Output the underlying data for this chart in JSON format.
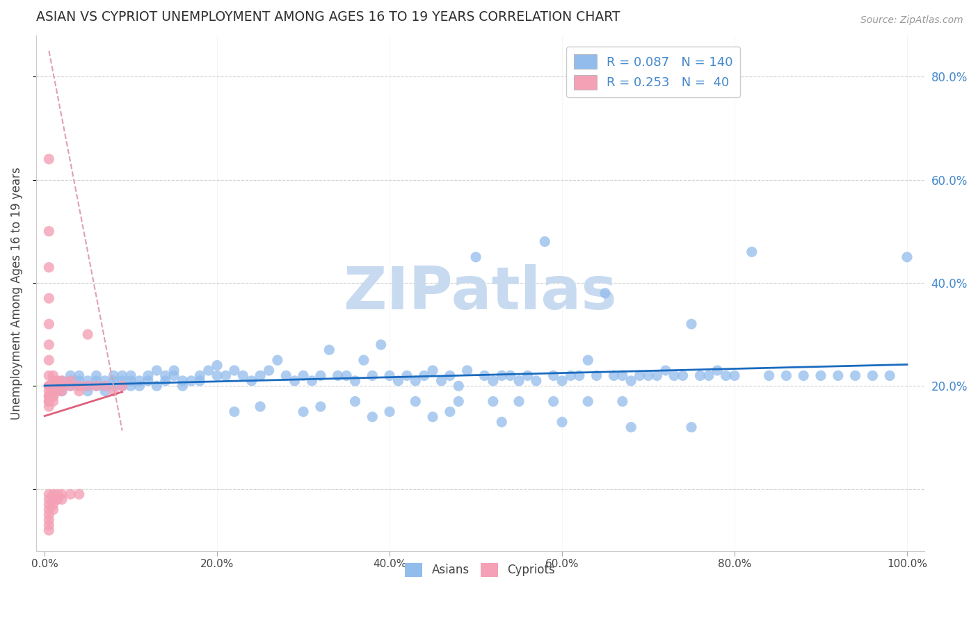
{
  "title": "ASIAN VS CYPRIOT UNEMPLOYMENT AMONG AGES 16 TO 19 YEARS CORRELATION CHART",
  "source": "Source: ZipAtlas.com",
  "ylabel": "Unemployment Among Ages 16 to 19 years",
  "xlim": [
    -0.01,
    1.02
  ],
  "ylim": [
    -0.12,
    0.88
  ],
  "ytick_positions": [
    0.0,
    0.2,
    0.4,
    0.6,
    0.8
  ],
  "ytick_labels_right": [
    "20.0%",
    "40.0%",
    "60.0%",
    "80.0%"
  ],
  "ytick_positions_right": [
    0.2,
    0.4,
    0.6,
    0.8
  ],
  "xtick_positions": [
    0.0,
    0.2,
    0.4,
    0.6,
    0.8,
    1.0
  ],
  "xtick_labels": [
    "0.0%",
    "20.0%",
    "40.0%",
    "60.0%",
    "80.0%",
    "100.0%"
  ],
  "asian_color": "#92bcec",
  "cypriot_color": "#f4a0b5",
  "asian_trend_color": "#1a6bbf",
  "cypriot_trend_color": "#e0607a",
  "cypriot_dash_color": "#e0a0b0",
  "legend_R_asian": "0.087",
  "legend_N_asian": "140",
  "legend_R_cypriot": "0.253",
  "legend_N_cypriot": "40",
  "title_color": "#303030",
  "watermark": "ZIPatlas",
  "watermark_color": "#c8daf0",
  "grid_color": "#d0d0d0",
  "asian_x": [
    0.01,
    0.01,
    0.02,
    0.02,
    0.02,
    0.03,
    0.03,
    0.03,
    0.04,
    0.04,
    0.04,
    0.05,
    0.05,
    0.05,
    0.06,
    0.06,
    0.06,
    0.07,
    0.07,
    0.07,
    0.08,
    0.08,
    0.08,
    0.09,
    0.09,
    0.09,
    0.1,
    0.1,
    0.1,
    0.11,
    0.11,
    0.12,
    0.12,
    0.13,
    0.13,
    0.14,
    0.14,
    0.15,
    0.15,
    0.16,
    0.16,
    0.17,
    0.18,
    0.18,
    0.19,
    0.2,
    0.2,
    0.21,
    0.22,
    0.23,
    0.24,
    0.25,
    0.26,
    0.27,
    0.28,
    0.29,
    0.3,
    0.31,
    0.32,
    0.33,
    0.34,
    0.35,
    0.36,
    0.37,
    0.38,
    0.39,
    0.4,
    0.41,
    0.42,
    0.43,
    0.44,
    0.45,
    0.46,
    0.47,
    0.48,
    0.49,
    0.5,
    0.51,
    0.52,
    0.53,
    0.54,
    0.55,
    0.56,
    0.57,
    0.58,
    0.59,
    0.6,
    0.61,
    0.62,
    0.63,
    0.64,
    0.65,
    0.66,
    0.67,
    0.68,
    0.69,
    0.7,
    0.71,
    0.72,
    0.73,
    0.74,
    0.75,
    0.76,
    0.77,
    0.78,
    0.79,
    0.8,
    0.82,
    0.84,
    0.86,
    0.88,
    0.9,
    0.92,
    0.94,
    0.96,
    0.98,
    1.0,
    0.36,
    0.43,
    0.48,
    0.52,
    0.55,
    0.59,
    0.63,
    0.67,
    0.22,
    0.3,
    0.38,
    0.45,
    0.53,
    0.6,
    0.68,
    0.75,
    0.25,
    0.32,
    0.4,
    0.47
  ],
  "asian_y": [
    0.2,
    0.19,
    0.21,
    0.2,
    0.19,
    0.22,
    0.21,
    0.2,
    0.22,
    0.21,
    0.2,
    0.19,
    0.2,
    0.21,
    0.2,
    0.21,
    0.22,
    0.19,
    0.2,
    0.21,
    0.22,
    0.21,
    0.2,
    0.22,
    0.21,
    0.2,
    0.21,
    0.2,
    0.22,
    0.21,
    0.2,
    0.22,
    0.21,
    0.23,
    0.2,
    0.22,
    0.21,
    0.22,
    0.23,
    0.21,
    0.2,
    0.21,
    0.22,
    0.21,
    0.23,
    0.22,
    0.24,
    0.22,
    0.23,
    0.22,
    0.21,
    0.22,
    0.23,
    0.25,
    0.22,
    0.21,
    0.22,
    0.21,
    0.22,
    0.27,
    0.22,
    0.22,
    0.21,
    0.25,
    0.22,
    0.28,
    0.22,
    0.21,
    0.22,
    0.21,
    0.22,
    0.23,
    0.21,
    0.22,
    0.2,
    0.23,
    0.45,
    0.22,
    0.21,
    0.22,
    0.22,
    0.21,
    0.22,
    0.21,
    0.48,
    0.22,
    0.21,
    0.22,
    0.22,
    0.25,
    0.22,
    0.38,
    0.22,
    0.22,
    0.21,
    0.22,
    0.22,
    0.22,
    0.23,
    0.22,
    0.22,
    0.32,
    0.22,
    0.22,
    0.23,
    0.22,
    0.22,
    0.46,
    0.22,
    0.22,
    0.22,
    0.22,
    0.22,
    0.22,
    0.22,
    0.22,
    0.45,
    0.17,
    0.17,
    0.17,
    0.17,
    0.17,
    0.17,
    0.17,
    0.17,
    0.15,
    0.15,
    0.14,
    0.14,
    0.13,
    0.13,
    0.12,
    0.12,
    0.16,
    0.16,
    0.15,
    0.15
  ],
  "cypriot_x": [
    0.005,
    0.005,
    0.005,
    0.005,
    0.005,
    0.005,
    0.005,
    0.005,
    0.005,
    0.005,
    0.005,
    0.005,
    0.005,
    0.005,
    0.005,
    0.005,
    0.01,
    0.01,
    0.01,
    0.01,
    0.01,
    0.01,
    0.01,
    0.01,
    0.015,
    0.015,
    0.015,
    0.02,
    0.02,
    0.02,
    0.03,
    0.03,
    0.04,
    0.04,
    0.05,
    0.05,
    0.06,
    0.07,
    0.08,
    0.09
  ],
  "cypriot_y": [
    0.64,
    0.5,
    0.43,
    0.37,
    0.32,
    0.28,
    0.25,
    0.22,
    0.2,
    0.2,
    0.19,
    0.18,
    0.18,
    0.17,
    0.17,
    0.16,
    0.22,
    0.21,
    0.2,
    0.19,
    0.19,
    0.18,
    0.18,
    0.17,
    0.21,
    0.2,
    0.19,
    0.21,
    0.2,
    0.19,
    0.21,
    0.2,
    0.2,
    0.19,
    0.3,
    0.2,
    0.2,
    0.2,
    0.19,
    0.2
  ],
  "cypriot_below_x": [
    0.005,
    0.005,
    0.005,
    0.005,
    0.005,
    0.005,
    0.005,
    0.005,
    0.01,
    0.01,
    0.01,
    0.01,
    0.015,
    0.015,
    0.02,
    0.02,
    0.03,
    0.04
  ],
  "cypriot_below_y": [
    -0.01,
    -0.02,
    -0.03,
    -0.04,
    -0.05,
    -0.06,
    -0.07,
    -0.08,
    -0.01,
    -0.02,
    -0.03,
    -0.04,
    -0.01,
    -0.02,
    -0.01,
    -0.02,
    -0.01,
    -0.01
  ]
}
